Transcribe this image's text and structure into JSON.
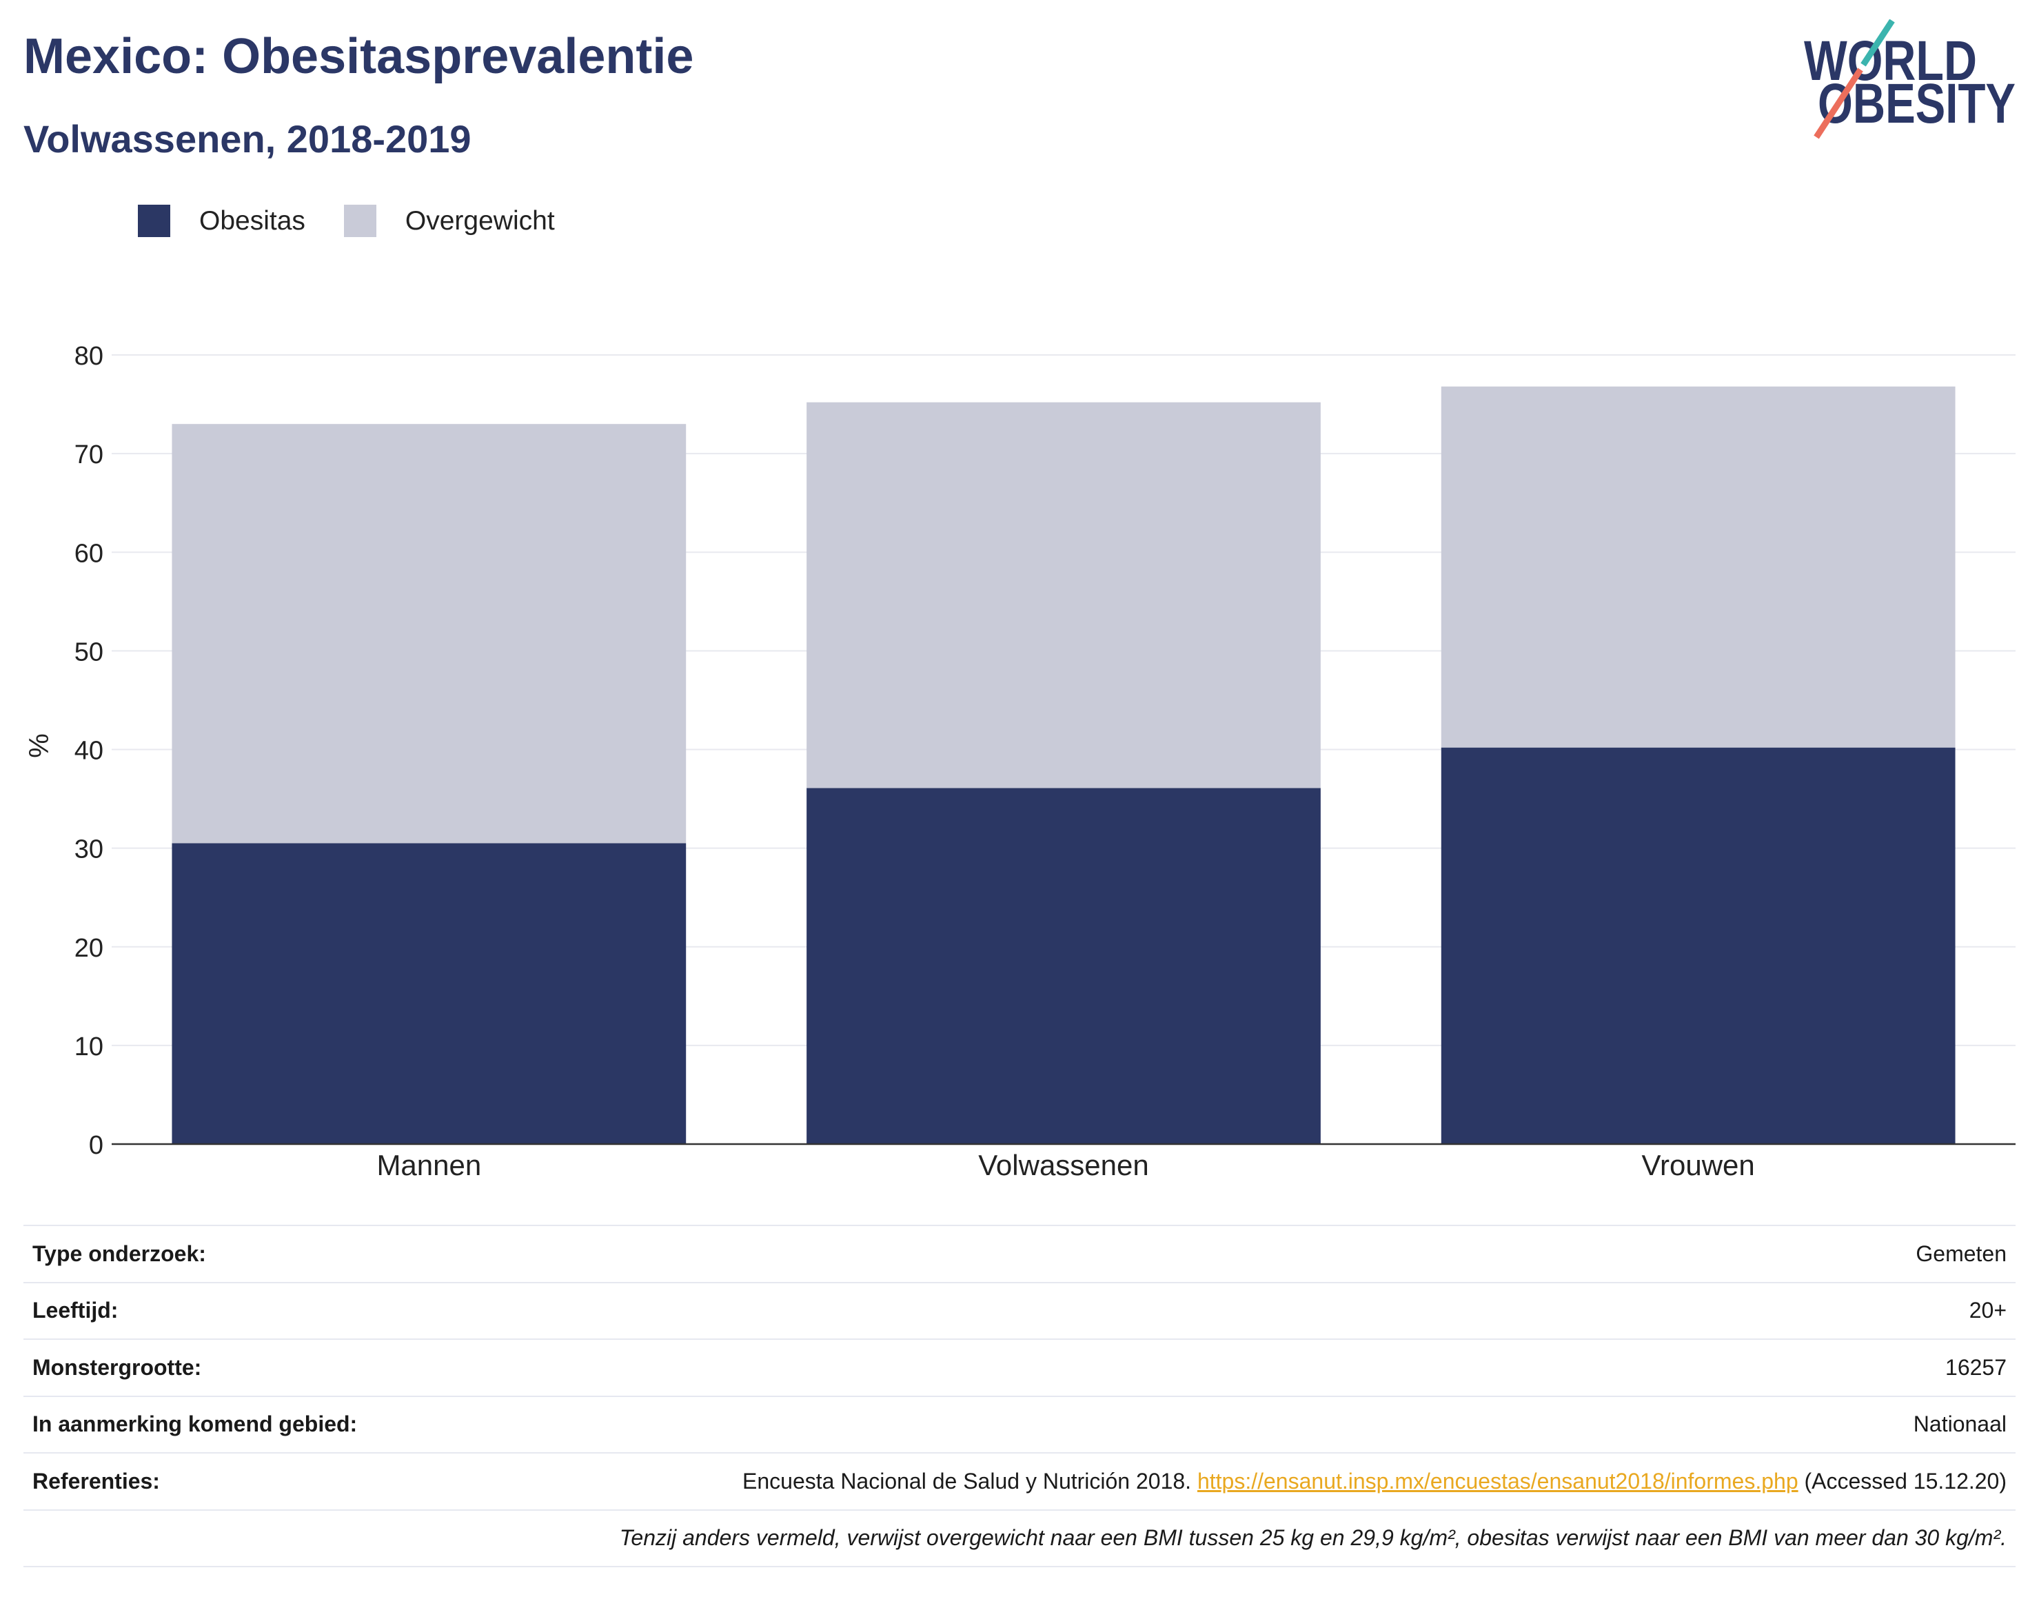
{
  "chart_data": {
    "type": "bar",
    "stacked": true,
    "title": "Mexico: Obesitasprevalentie",
    "subtitle": "Volwassenen, 2018-2019",
    "categories": [
      "Mannen",
      "Volwassenen",
      "Vrouwen"
    ],
    "series": [
      {
        "name": "Obesitas",
        "color": "#2b3764",
        "values": [
          30.5,
          36.1,
          40.2
        ]
      },
      {
        "name": "Overgewicht",
        "color": "#c9cbd8",
        "values": [
          42.5,
          39.1,
          36.6
        ]
      }
    ],
    "xlabel": "",
    "ylabel": "%",
    "ylim": [
      0,
      80
    ],
    "yticks": [
      0,
      10,
      20,
      30,
      40,
      50,
      60,
      70,
      80
    ],
    "grid": true,
    "legend": "top-left"
  },
  "logo": {
    "line1": "WORLD",
    "line2": "OBESITY",
    "color": "#2b3766",
    "accent_top": "#3bb4ae",
    "accent_bottom": "#ec6e5c"
  },
  "details": {
    "rows": [
      {
        "label": "Type onderzoek:",
        "value": "Gemeten"
      },
      {
        "label": "Leeftijd:",
        "value": "20+"
      },
      {
        "label": "Monstergrootte:",
        "value": "16257"
      },
      {
        "label": "In aanmerking komend gebied:",
        "value": "Nationaal"
      }
    ],
    "references": {
      "label": "Referenties:",
      "text": "Encuesta Nacional de Salud y Nutrición 2018.",
      "link": "https://ensanut.insp.mx/encuestas/ensanut2018/informes.php",
      "suffix": "(Accessed 15.12.20)"
    },
    "footnote": "Tenzij anders vermeld, verwijst overgewicht naar een BMI tussen 25 kg en 29,9 kg/m², obesitas verwijst naar een BMI van meer dan 30 kg/m²."
  },
  "colors": {
    "title": "#2b3766",
    "link": "#e9a820",
    "grid": "#e8e9ef",
    "axis": "#333333"
  }
}
